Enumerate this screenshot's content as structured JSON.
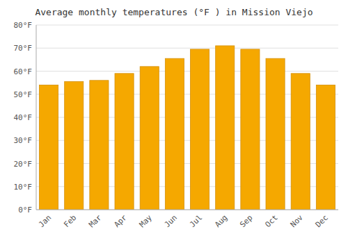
{
  "chart_data": {
    "type": "bar",
    "title": "Average monthly temperatures (°F ) in Mission Viejo",
    "categories": [
      "Jan",
      "Feb",
      "Mar",
      "Apr",
      "May",
      "Jun",
      "Jul",
      "Aug",
      "Sep",
      "Oct",
      "Nov",
      "Dec"
    ],
    "values": [
      54,
      55.5,
      56,
      59,
      62,
      65.5,
      69.5,
      71,
      69.5,
      65.5,
      59,
      54
    ],
    "color": "#F5A800",
    "ylim": [
      0,
      80
    ],
    "yticks": [
      {
        "value": 0,
        "label": "0°F"
      },
      {
        "value": 10,
        "label": "10°F"
      },
      {
        "value": 20,
        "label": "20°F"
      },
      {
        "value": 30,
        "label": "30°F"
      },
      {
        "value": 40,
        "label": "40°F"
      },
      {
        "value": 50,
        "label": "50°F"
      },
      {
        "value": 60,
        "label": "60°F"
      },
      {
        "value": 70,
        "label": "70°F"
      },
      {
        "value": 80,
        "label": "80°F"
      }
    ],
    "grid": true
  }
}
